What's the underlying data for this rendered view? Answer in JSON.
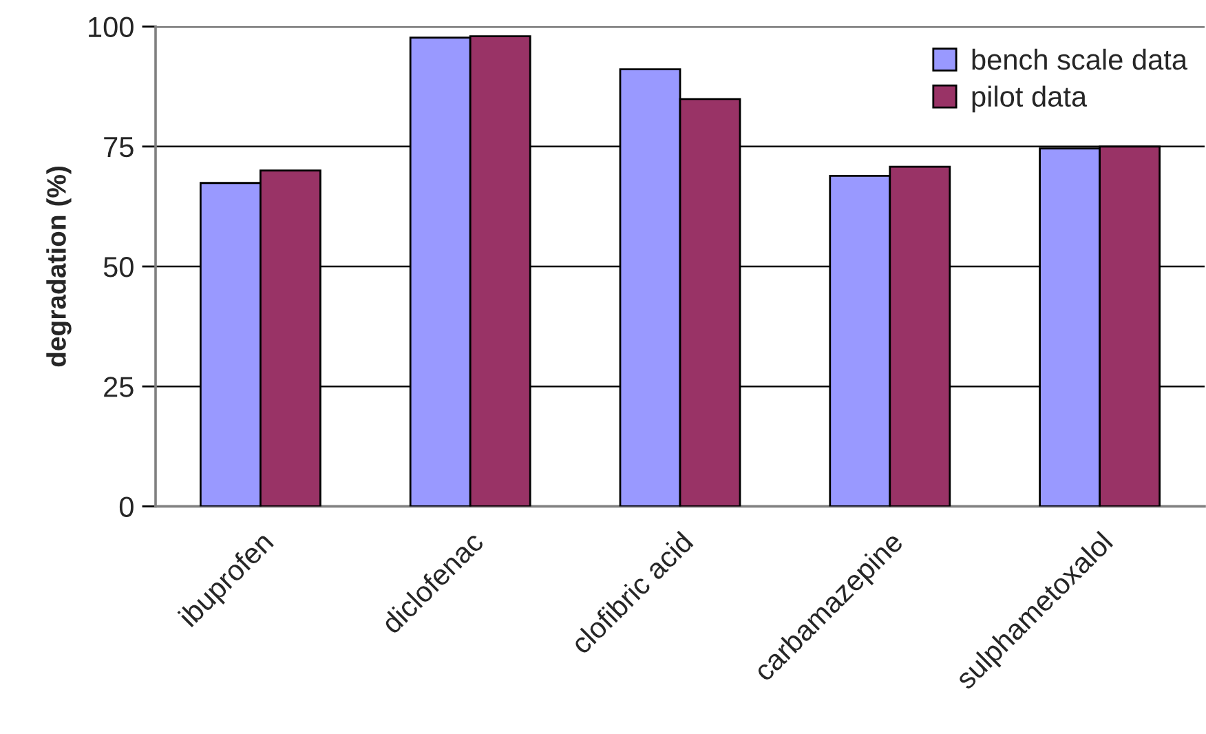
{
  "chart_data": {
    "type": "bar",
    "ylabel": "degradation (%)",
    "categories": [
      "ibuprofen",
      "diclofenac",
      "clofibric acid",
      "carbamazepine",
      "sulphametoxalol"
    ],
    "series": [
      {
        "name": "bench scale data",
        "color": "#9999ff",
        "values": [
          67.4,
          97.7,
          91.1,
          68.9,
          74.6
        ]
      },
      {
        "name": "pilot data",
        "color": "#993366",
        "values": [
          70.0,
          98.0,
          84.9,
          70.8,
          75.0
        ]
      }
    ],
    "ylim": [
      0,
      100
    ],
    "yticks": [
      0,
      25,
      50,
      75,
      100
    ],
    "grid": "y",
    "legend": "top right"
  }
}
